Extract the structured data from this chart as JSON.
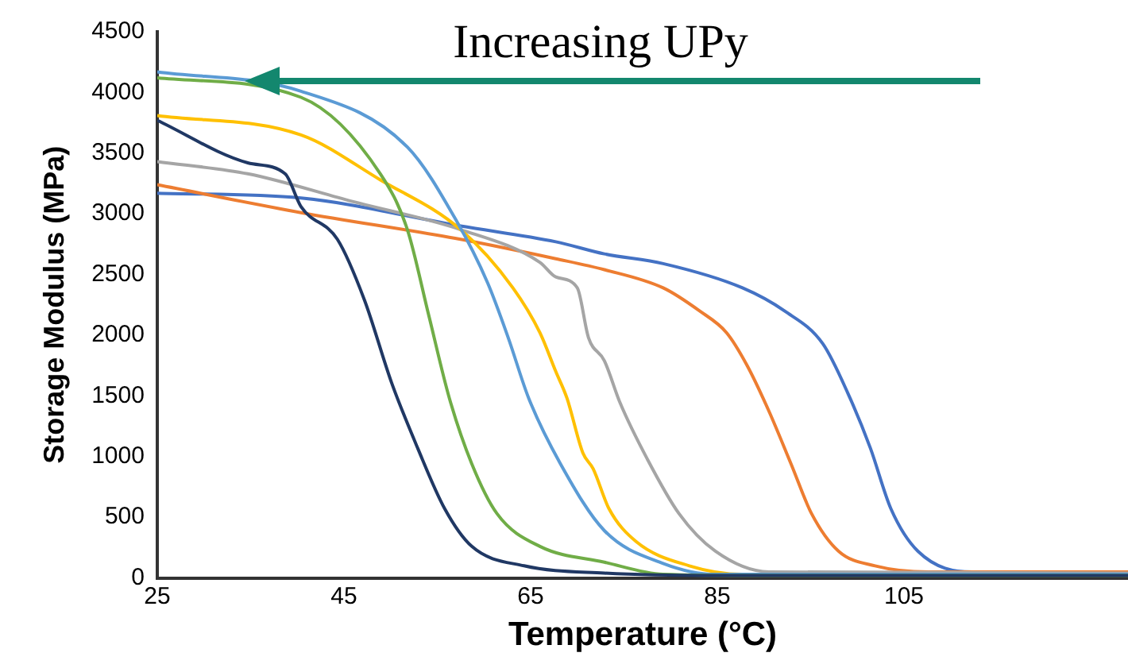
{
  "chart_data": {
    "type": "line",
    "xlabel": "Temperature (°C)",
    "ylabel": "Storage Modulus (MPa)",
    "annotations": [
      "Increasing UPy"
    ],
    "xlim": [
      25,
      129
    ],
    "xticks": [
      25,
      45,
      65,
      85,
      105
    ],
    "ylim": [
      0,
      4500
    ],
    "yticks": [
      0,
      500,
      1000,
      1500,
      2000,
      2500,
      3000,
      3500,
      4000,
      4500
    ],
    "grid": false,
    "legend": false,
    "marker": "none",
    "line_style": "solid",
    "series": [
      {
        "color": "#203864",
        "x": [
          25,
          34.7,
          38.7,
          40.4,
          44.3,
          47.2,
          50.1,
          52.9,
          55.8,
          58.7,
          64.3,
          72.9,
          85,
          129
        ],
        "values": [
          3770,
          3420,
          3330,
          3060,
          2790,
          2290,
          1610,
          1070,
          570,
          260,
          100,
          40,
          20,
          20
        ]
      },
      {
        "color": "#70ad47",
        "x": [
          25,
          40.4,
          48.9,
          51.8,
          54.1,
          56.3,
          58.7,
          61.4,
          66,
          72.9,
          79.2,
          90,
          129
        ],
        "values": [
          4120,
          3960,
          3330,
          2870,
          2160,
          1480,
          940,
          530,
          260,
          130,
          30,
          20,
          20
        ]
      },
      {
        "color": "#5b9bd5",
        "x": [
          25,
          40.4,
          51.8,
          57,
          60.4,
          62.6,
          64.8,
          68.2,
          72.9,
          79.2,
          84.8,
          95,
          129
        ],
        "values": [
          4170,
          4010,
          3550,
          2950,
          2430,
          1980,
          1480,
          940,
          390,
          120,
          30,
          30,
          30
        ]
      },
      {
        "color": "#ffc000",
        "x": [
          25,
          40.4,
          48.9,
          57.5,
          63.1,
          66,
          67.7,
          68.9,
          70.6,
          71.7,
          73.4,
          76.3,
          82,
          87.7,
          129
        ],
        "values": [
          3810,
          3650,
          3280,
          2870,
          2390,
          2020,
          1700,
          1480,
          1030,
          900,
          570,
          300,
          100,
          30,
          30
        ]
      },
      {
        "color": "#a5a5a5",
        "x": [
          25,
          34.7,
          46,
          57.5,
          66,
          67.7,
          70,
          71.2,
          72.9,
          74.6,
          77.5,
          80.9,
          84.8,
          90.5,
          129
        ],
        "values": [
          3430,
          3330,
          3100,
          2870,
          2600,
          2480,
          2390,
          1980,
          1790,
          1440,
          980,
          530,
          220,
          50,
          40
        ]
      },
      {
        "color": "#ed7d31",
        "x": [
          25,
          40.4,
          57.5,
          67.7,
          72.9,
          79.2,
          83.1,
          86,
          88.2,
          90.5,
          92.9,
          95.1,
          98,
          101.9,
          107.6,
          129
        ],
        "values": [
          3240,
          3010,
          2790,
          2630,
          2540,
          2390,
          2200,
          2020,
          1750,
          1380,
          940,
          530,
          220,
          100,
          50,
          50
        ]
      },
      {
        "color": "#4472c4",
        "x": [
          25,
          40.4,
          57.5,
          67.7,
          72.9,
          79.2,
          87.7,
          92.2,
          96.3,
          99,
          101.4,
          103.6,
          106.5,
          112.3,
          129
        ],
        "values": [
          3170,
          3130,
          2900,
          2770,
          2670,
          2590,
          2390,
          2200,
          1930,
          1520,
          1070,
          570,
          220,
          50,
          50
        ]
      }
    ]
  }
}
